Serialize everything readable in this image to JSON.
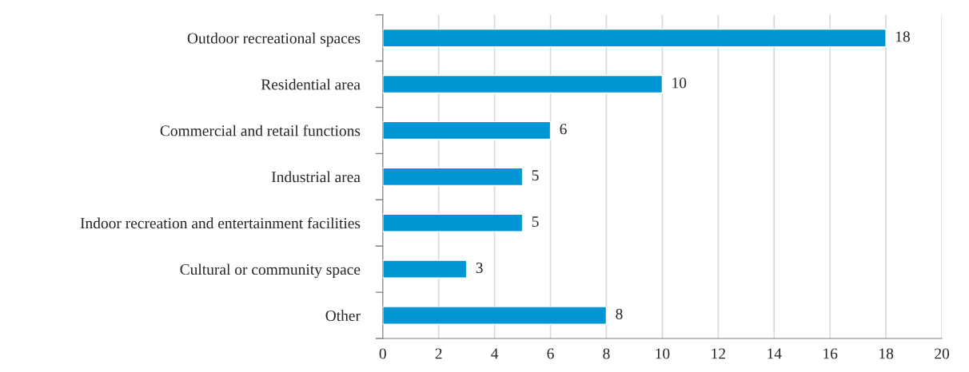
{
  "chart_data": {
    "type": "bar",
    "orientation": "horizontal",
    "categories": [
      "Outdoor recreational spaces",
      "Residential area",
      "Commercial and retail functions",
      "Industrial area",
      "Indoor recreation and entertainment facilities",
      "Cultural or community space",
      "Other"
    ],
    "values": [
      18,
      10,
      6,
      5,
      5,
      3,
      8
    ],
    "color": "#0096d6",
    "xlim": [
      0,
      20
    ],
    "xticks": [
      0,
      2,
      4,
      6,
      8,
      10,
      12,
      14,
      16,
      18,
      20
    ],
    "grid": "x",
    "data_labels": true
  }
}
